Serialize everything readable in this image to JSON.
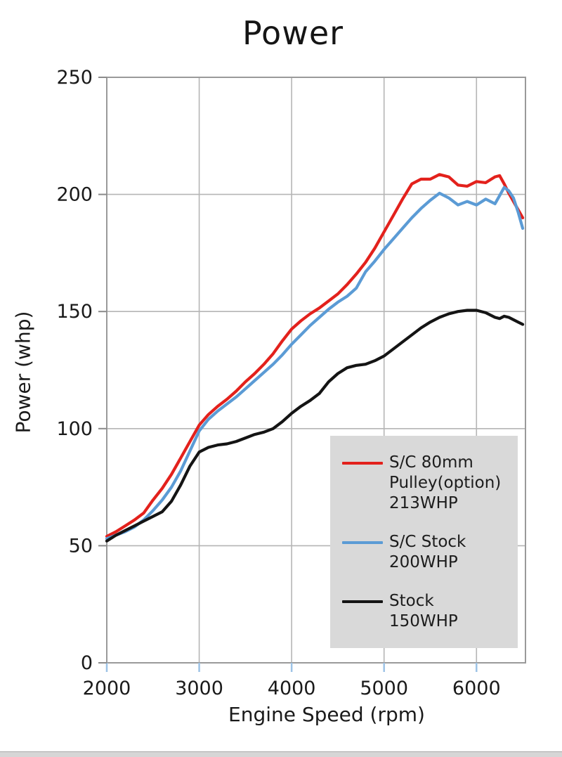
{
  "title": "Power",
  "axes": {
    "x": {
      "label": "Engine Speed (rpm)",
      "ticks": [
        2000,
        3000,
        4000,
        5000,
        6000
      ],
      "min": 2000,
      "max": 6530,
      "tick_color": "#9dc3e6"
    },
    "y": {
      "label": "Power (whp)",
      "ticks": [
        0,
        50,
        100,
        150,
        200,
        250
      ],
      "min": 0,
      "max": 250,
      "tick_color": "#8a8a8a"
    }
  },
  "legend": {
    "items": [
      {
        "color": "#e3211c",
        "lines": [
          "S/C 80mm",
          "Pulley(option)",
          "213WHP"
        ]
      },
      {
        "color": "#5b9bd5",
        "lines": [
          "S/C Stock",
          "200WHP"
        ]
      },
      {
        "color": "#141414",
        "lines": [
          "Stock",
          "150WHP"
        ]
      }
    ],
    "background": "#d9d9d9"
  },
  "colors": {
    "grid": "#b5b5b5",
    "frame": "#9a9a9a",
    "background": "#ffffff"
  },
  "chart_data": {
    "type": "line",
    "title": "Power",
    "xlabel": "Engine Speed (rpm)",
    "ylabel": "Power (whp)",
    "xlim": [
      2000,
      6530
    ],
    "ylim": [
      0,
      250
    ],
    "grid": true,
    "legend_position": "lower right",
    "x": [
      2000,
      2100,
      2200,
      2300,
      2400,
      2500,
      2600,
      2700,
      2800,
      2900,
      3000,
      3100,
      3200,
      3300,
      3400,
      3500,
      3600,
      3700,
      3800,
      3900,
      4000,
      4100,
      4200,
      4300,
      4400,
      4500,
      4600,
      4700,
      4800,
      4900,
      5000,
      5100,
      5200,
      5300,
      5400,
      5500,
      5600,
      5700,
      5800,
      5900,
      6000,
      6100,
      6200,
      6250,
      6300,
      6350,
      6400,
      6450,
      6500
    ],
    "series": [
      {
        "name": "S/C 80mm Pulley(option) 213WHP",
        "color": "#e3211c",
        "peak_whp": 213,
        "values": [
          54,
          56,
          58.5,
          61,
          64,
          69.5,
          74.5,
          80.5,
          87.5,
          94.5,
          101.5,
          106,
          109.5,
          112.5,
          116,
          120,
          123.5,
          127.5,
          132,
          137.5,
          142.5,
          146,
          149,
          151.5,
          154.5,
          157.5,
          161.5,
          166,
          171,
          177,
          184,
          191,
          198,
          204.5,
          206.5,
          206.5,
          208.5,
          207.5,
          204,
          203.5,
          205.5,
          205,
          207.5,
          208,
          204.5,
          200.5,
          197,
          193.5,
          190
        ]
      },
      {
        "name": "S/C Stock 200WHP",
        "color": "#5b9bd5",
        "peak_whp": 200,
        "values": [
          53,
          54.5,
          56,
          58,
          61,
          65,
          69.5,
          75,
          82,
          90.5,
          99,
          104,
          107.5,
          110.5,
          113.5,
          117,
          120.5,
          124,
          127.5,
          131.5,
          136,
          140,
          144,
          147.5,
          151,
          154,
          156.5,
          160,
          167,
          171.5,
          176.5,
          181,
          185.5,
          190,
          194,
          197.5,
          200.5,
          198.5,
          195.5,
          197,
          195.5,
          198,
          196,
          199.5,
          203,
          201.5,
          198.5,
          192.5,
          185.5
        ]
      },
      {
        "name": "Stock 150WHP",
        "color": "#141414",
        "peak_whp": 150,
        "values": [
          52,
          54.5,
          56.5,
          58.5,
          60.5,
          62.5,
          64.5,
          69,
          76,
          84,
          90,
          92,
          93,
          93.5,
          94.5,
          96,
          97.5,
          98.5,
          100,
          103,
          106.5,
          109.5,
          112,
          115,
          120,
          123.5,
          126,
          127,
          127.5,
          129,
          131,
          134,
          137,
          140,
          143,
          145.5,
          147.5,
          149,
          150,
          150.5,
          150.5,
          149.5,
          147.5,
          147,
          148,
          147.5,
          146.5,
          145.5,
          144.5
        ]
      }
    ]
  }
}
